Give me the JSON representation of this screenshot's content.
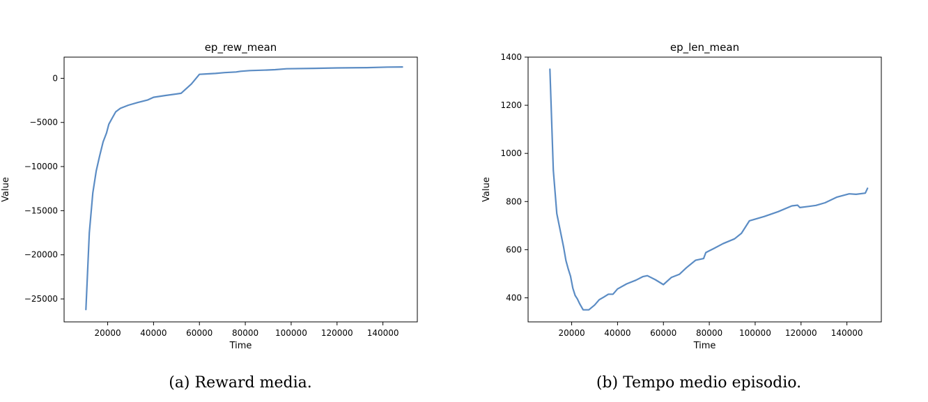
{
  "chart_data": [
    {
      "type": "line",
      "title": "ep_rew_mean",
      "xlabel": "Time",
      "ylabel": "Value",
      "xlim": [
        1000,
        155000
      ],
      "ylim": [
        -27600,
        2400
      ],
      "xticks": [
        20000,
        40000,
        60000,
        80000,
        100000,
        120000,
        140000
      ],
      "xtick_labels": [
        "20000",
        "40000",
        "60000",
        "80000",
        "100000",
        "120000",
        "140000"
      ],
      "yticks": [
        0,
        -5000,
        -10000,
        -15000,
        -20000,
        -25000
      ],
      "ytick_labels": [
        "0",
        "−5000",
        "−10000",
        "−15000",
        "−20000",
        "−25000"
      ],
      "caption": "(a)  Reward media.",
      "color": "#5b8cc4",
      "series": [
        {
          "x": [
            10500,
            12000,
            13500,
            15000,
            16500,
            18000,
            19500,
            20500,
            22000,
            23500,
            25500,
            29000,
            33000,
            37500,
            40000,
            45000,
            52000,
            56500,
            60000,
            63000,
            67000,
            71000,
            76000,
            78000,
            82000,
            88000,
            93000,
            98000,
            110000,
            120000,
            133000,
            142000,
            148500
          ],
          "y": [
            -26200,
            -17500,
            -13000,
            -10500,
            -8800,
            -7200,
            -6200,
            -5200,
            -4500,
            -3800,
            -3400,
            -3050,
            -2750,
            -2450,
            -2150,
            -1950,
            -1700,
            -650,
            450,
            500,
            550,
            650,
            720,
            800,
            880,
            920,
            980,
            1080,
            1130,
            1180,
            1210,
            1270,
            1290
          ]
        }
      ]
    },
    {
      "type": "line",
      "title": "ep_len_mean",
      "xlabel": "Time",
      "ylabel": "Value",
      "xlim": [
        1000,
        155000
      ],
      "ylim": [
        300,
        1400
      ],
      "xticks": [
        20000,
        40000,
        60000,
        80000,
        100000,
        120000,
        140000
      ],
      "xtick_labels": [
        "20000",
        "40000",
        "60000",
        "80000",
        "100000",
        "120000",
        "140000"
      ],
      "yticks": [
        400,
        600,
        800,
        1000,
        1200,
        1400
      ],
      "ytick_labels": [
        "400",
        "600",
        "800",
        "1000",
        "1200",
        "1400"
      ],
      "caption": "(b)  Tempo medio episodio.",
      "color": "#5b8cc4",
      "series": [
        {
          "x": [
            10500,
            12000,
            13500,
            15000,
            16500,
            17500,
            18500,
            19500,
            20500,
            21500,
            22500,
            23500,
            25000,
            27500,
            30000,
            32000,
            34000,
            36000,
            38000,
            40000,
            44000,
            48000,
            51000,
            53000,
            56500,
            60000,
            63500,
            67000,
            70000,
            74000,
            77500,
            78500,
            82000,
            86000,
            91000,
            94000,
            97500,
            104000,
            110000,
            116000,
            118500,
            119500,
            123500,
            126500,
            130500,
            135500,
            141000,
            144000,
            148000,
            149000
          ],
          "y": [
            1350,
            930,
            750,
            680,
            610,
            555,
            520,
            490,
            440,
            410,
            395,
            375,
            350,
            350,
            370,
            392,
            403,
            415,
            415,
            437,
            458,
            473,
            488,
            492,
            475,
            455,
            485,
            498,
            525,
            556,
            563,
            588,
            605,
            625,
            645,
            668,
            720,
            738,
            758,
            782,
            785,
            775,
            780,
            784,
            795,
            818,
            832,
            830,
            835,
            855
          ]
        }
      ]
    }
  ]
}
